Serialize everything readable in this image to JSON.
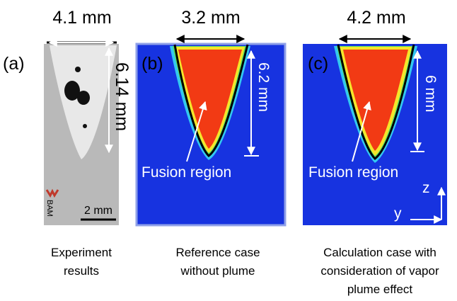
{
  "panels": [
    {
      "label": "(a)",
      "width": "4.1 mm",
      "depth": "6.14 mm",
      "logo": "BAM",
      "scale_bar": "2 mm",
      "caption": [
        "Experiment",
        "results"
      ]
    },
    {
      "label": "(b)",
      "width": "3.2 mm",
      "depth": "6.2 mm",
      "region": "Fusion region",
      "caption": [
        "Reference case",
        "without plume"
      ]
    },
    {
      "label": "(c)",
      "width": "4.2 mm",
      "depth": "6 mm",
      "region": "Fusion region",
      "caption": [
        "Calculation case with",
        "consideration of vapor",
        "plume effect"
      ],
      "axes": {
        "z": "z",
        "y": "y"
      }
    }
  ]
}
